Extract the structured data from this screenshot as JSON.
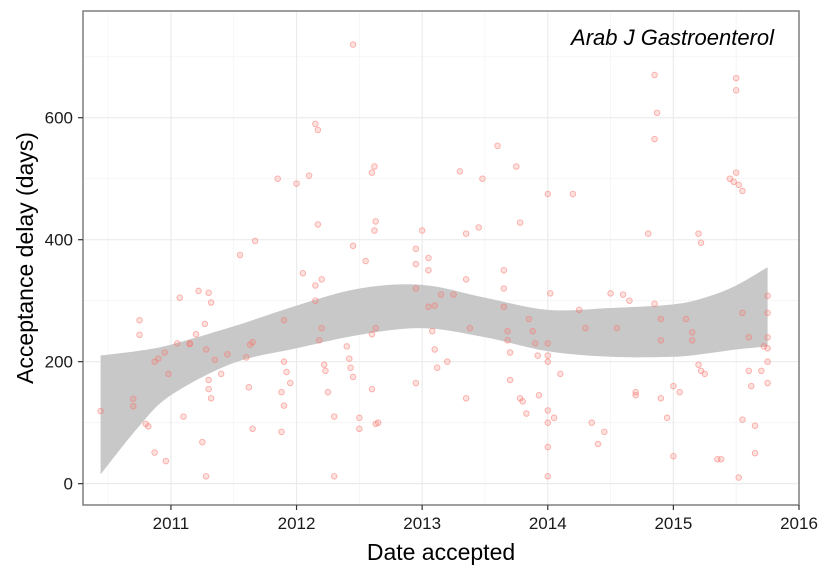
{
  "chart_data": {
    "type": "scatter",
    "title": "",
    "annotation": "Arab J Gastroenterol",
    "xlabel": "Date accepted",
    "ylabel": "Acceptance delay (days)",
    "xlim": [
      2010.3,
      2016.0
    ],
    "ylim": [
      -35,
      775
    ],
    "x_ticks": [
      2011,
      2012,
      2013,
      2014,
      2015,
      2016
    ],
    "y_ticks": [
      0,
      200,
      400,
      600
    ],
    "x_tick_labels": [
      "2011",
      "2012",
      "2013",
      "2014",
      "2015",
      "2016"
    ],
    "y_tick_labels": [
      "0",
      "200",
      "400",
      "600"
    ],
    "grid": true,
    "legend": "none",
    "colors": {
      "points": "#f8766d",
      "band": "#c8c8c8",
      "panel_border": "#7f7f7f",
      "grid": "#ebebeb"
    },
    "points": [
      [
        2010.44,
        119
      ],
      [
        2010.7,
        139
      ],
      [
        2010.7,
        127
      ],
      [
        2010.75,
        268
      ],
      [
        2010.75,
        244
      ],
      [
        2010.8,
        98
      ],
      [
        2010.82,
        94
      ],
      [
        2010.87,
        200
      ],
      [
        2010.87,
        51
      ],
      [
        2010.9,
        205
      ],
      [
        2010.95,
        215
      ],
      [
        2010.96,
        37
      ],
      [
        2010.98,
        180
      ],
      [
        2011.05,
        230
      ],
      [
        2011.07,
        305
      ],
      [
        2011.1,
        110
      ],
      [
        2011.15,
        229
      ],
      [
        2011.15,
        230
      ],
      [
        2011.2,
        245
      ],
      [
        2011.22,
        316
      ],
      [
        2011.27,
        262
      ],
      [
        2011.3,
        313
      ],
      [
        2011.32,
        297
      ],
      [
        2011.28,
        220
      ],
      [
        2011.25,
        68
      ],
      [
        2011.28,
        12
      ],
      [
        2011.3,
        170
      ],
      [
        2011.3,
        155
      ],
      [
        2011.32,
        140
      ],
      [
        2011.35,
        203
      ],
      [
        2011.4,
        180
      ],
      [
        2011.45,
        212
      ],
      [
        2011.55,
        375
      ],
      [
        2011.6,
        207
      ],
      [
        2011.62,
        158
      ],
      [
        2011.63,
        228
      ],
      [
        2011.65,
        90
      ],
      [
        2011.67,
        398
      ],
      [
        2011.65,
        232
      ],
      [
        2011.85,
        500
      ],
      [
        2011.88,
        150
      ],
      [
        2011.9,
        200
      ],
      [
        2011.9,
        128
      ],
      [
        2011.9,
        268
      ],
      [
        2011.92,
        183
      ],
      [
        2011.95,
        165
      ],
      [
        2011.88,
        85
      ],
      [
        2012.0,
        492
      ],
      [
        2012.05,
        345
      ],
      [
        2012.1,
        505
      ],
      [
        2012.15,
        590
      ],
      [
        2012.17,
        580
      ],
      [
        2012.15,
        325
      ],
      [
        2012.15,
        300
      ],
      [
        2012.17,
        425
      ],
      [
        2012.2,
        335
      ],
      [
        2012.2,
        255
      ],
      [
        2012.18,
        235
      ],
      [
        2012.22,
        195
      ],
      [
        2012.23,
        185
      ],
      [
        2012.25,
        150
      ],
      [
        2012.3,
        110
      ],
      [
        2012.3,
        12
      ],
      [
        2012.45,
        720
      ],
      [
        2012.45,
        390
      ],
      [
        2012.4,
        225
      ],
      [
        2012.42,
        205
      ],
      [
        2012.43,
        190
      ],
      [
        2012.45,
        175
      ],
      [
        2012.5,
        108
      ],
      [
        2012.5,
        90
      ],
      [
        2012.55,
        365
      ],
      [
        2012.6,
        510
      ],
      [
        2012.62,
        520
      ],
      [
        2012.63,
        430
      ],
      [
        2012.62,
        415
      ],
      [
        2012.63,
        255
      ],
      [
        2012.6,
        245
      ],
      [
        2012.6,
        155
      ],
      [
        2012.65,
        100
      ],
      [
        2012.63,
        98
      ],
      [
        2012.95,
        385
      ],
      [
        2012.95,
        360
      ],
      [
        2012.95,
        320
      ],
      [
        2012.95,
        165
      ],
      [
        2013.0,
        415
      ],
      [
        2013.05,
        370
      ],
      [
        2013.05,
        350
      ],
      [
        2013.05,
        290
      ],
      [
        2013.1,
        292
      ],
      [
        2013.08,
        250
      ],
      [
        2013.1,
        220
      ],
      [
        2013.12,
        190
      ],
      [
        2013.15,
        310
      ],
      [
        2013.2,
        200
      ],
      [
        2013.25,
        310
      ],
      [
        2013.3,
        512
      ],
      [
        2013.35,
        410
      ],
      [
        2013.35,
        335
      ],
      [
        2013.38,
        255
      ],
      [
        2013.35,
        140
      ],
      [
        2013.45,
        420
      ],
      [
        2013.48,
        500
      ],
      [
        2013.6,
        554
      ],
      [
        2013.65,
        350
      ],
      [
        2013.65,
        320
      ],
      [
        2013.65,
        290
      ],
      [
        2013.68,
        250
      ],
      [
        2013.68,
        235
      ],
      [
        2013.7,
        215
      ],
      [
        2013.7,
        170
      ],
      [
        2013.75,
        520
      ],
      [
        2013.78,
        428
      ],
      [
        2013.78,
        140
      ],
      [
        2013.8,
        135
      ],
      [
        2013.83,
        115
      ],
      [
        2013.85,
        270
      ],
      [
        2013.88,
        250
      ],
      [
        2013.9,
        230
      ],
      [
        2013.92,
        210
      ],
      [
        2013.93,
        145
      ],
      [
        2014.0,
        475
      ],
      [
        2014.02,
        312
      ],
      [
        2014.0,
        230
      ],
      [
        2014.0,
        210
      ],
      [
        2014.0,
        200
      ],
      [
        2014.0,
        120
      ],
      [
        2014.0,
        100
      ],
      [
        2014.0,
        60
      ],
      [
        2014.0,
        12
      ],
      [
        2014.05,
        108
      ],
      [
        2014.1,
        180
      ],
      [
        2014.2,
        475
      ],
      [
        2014.25,
        285
      ],
      [
        2014.3,
        255
      ],
      [
        2014.35,
        100
      ],
      [
        2014.4,
        65
      ],
      [
        2014.45,
        85
      ],
      [
        2014.5,
        312
      ],
      [
        2014.55,
        255
      ],
      [
        2014.6,
        310
      ],
      [
        2014.65,
        300
      ],
      [
        2014.7,
        150
      ],
      [
        2014.7,
        145
      ],
      [
        2014.8,
        410
      ],
      [
        2014.85,
        670
      ],
      [
        2014.87,
        608
      ],
      [
        2014.85,
        565
      ],
      [
        2014.85,
        295
      ],
      [
        2014.9,
        270
      ],
      [
        2014.9,
        235
      ],
      [
        2014.9,
        140
      ],
      [
        2014.95,
        108
      ],
      [
        2015.0,
        45
      ],
      [
        2015.0,
        160
      ],
      [
        2015.05,
        150
      ],
      [
        2015.1,
        270
      ],
      [
        2015.15,
        248
      ],
      [
        2015.15,
        235
      ],
      [
        2015.2,
        410
      ],
      [
        2015.22,
        395
      ],
      [
        2015.2,
        195
      ],
      [
        2015.22,
        185
      ],
      [
        2015.25,
        180
      ],
      [
        2015.35,
        40
      ],
      [
        2015.38,
        40
      ],
      [
        2015.45,
        500
      ],
      [
        2015.5,
        510
      ],
      [
        2015.52,
        490
      ],
      [
        2015.55,
        480
      ],
      [
        2015.48,
        495
      ],
      [
        2015.5,
        665
      ],
      [
        2015.5,
        645
      ],
      [
        2015.55,
        280
      ],
      [
        2015.6,
        240
      ],
      [
        2015.6,
        185
      ],
      [
        2015.62,
        160
      ],
      [
        2015.55,
        105
      ],
      [
        2015.52,
        10
      ],
      [
        2015.65,
        50
      ],
      [
        2015.65,
        95
      ],
      [
        2015.7,
        185
      ],
      [
        2015.72,
        225
      ],
      [
        2015.75,
        308
      ],
      [
        2015.75,
        280
      ],
      [
        2015.75,
        240
      ],
      [
        2015.75,
        222
      ],
      [
        2015.75,
        200
      ],
      [
        2015.75,
        165
      ]
    ],
    "smooth_band_upper": [
      [
        2010.44,
        210
      ],
      [
        2010.75,
        218
      ],
      [
        2011.0,
        228
      ],
      [
        2011.5,
        258
      ],
      [
        2012.0,
        292
      ],
      [
        2012.5,
        320
      ],
      [
        2013.0,
        326
      ],
      [
        2013.5,
        305
      ],
      [
        2014.0,
        285
      ],
      [
        2014.5,
        288
      ],
      [
        2015.0,
        294
      ],
      [
        2015.25,
        305
      ],
      [
        2015.5,
        325
      ],
      [
        2015.75,
        355
      ]
    ],
    "smooth_band_lower": [
      [
        2010.44,
        15
      ],
      [
        2010.75,
        95
      ],
      [
        2011.0,
        145
      ],
      [
        2011.5,
        198
      ],
      [
        2012.0,
        222
      ],
      [
        2012.5,
        244
      ],
      [
        2013.0,
        255
      ],
      [
        2013.5,
        240
      ],
      [
        2014.0,
        217
      ],
      [
        2014.5,
        208
      ],
      [
        2015.0,
        208
      ],
      [
        2015.25,
        213
      ],
      [
        2015.5,
        220
      ],
      [
        2015.75,
        225
      ]
    ]
  }
}
